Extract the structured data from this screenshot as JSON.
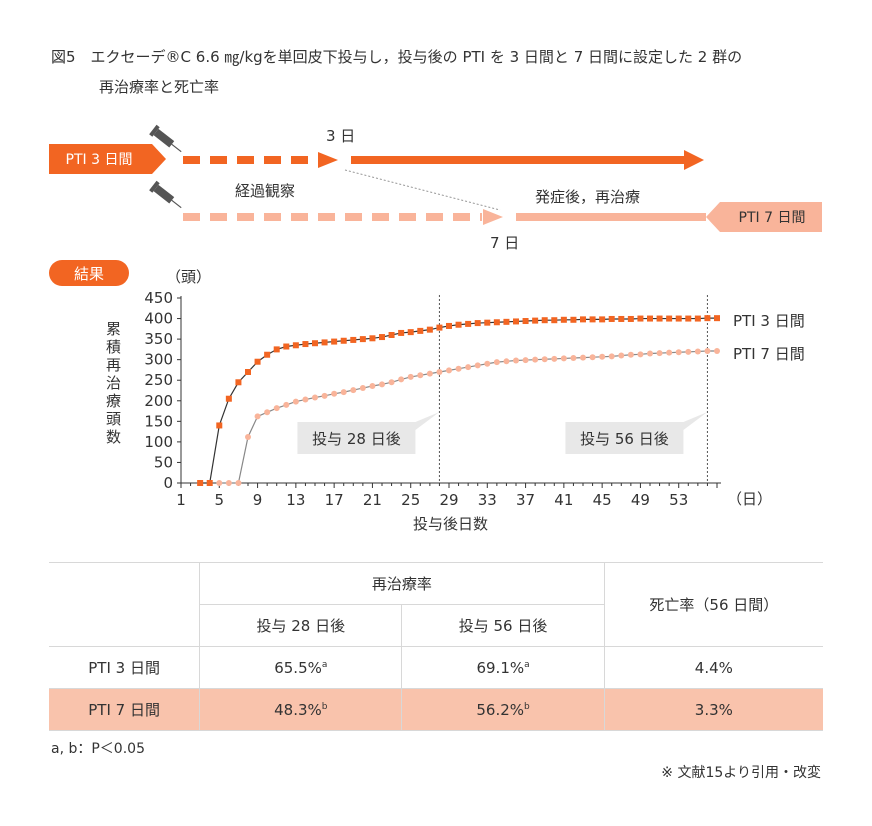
{
  "title": {
    "line1": "図5　エクセーデ®C 6.6 ㎎/kgを単回皮下投与し，投与後の PTI を 3 日間と 7 日間に設定した 2 群の",
    "line2": "再治療率と死亡率"
  },
  "protocol": {
    "group_a_label": "PTI 3 日間",
    "group_b_label": "PTI 7 日間",
    "day3_label": "3 日",
    "day7_label": "7 日",
    "observation_label": "経過観察",
    "retreat_label": "発症後，再治療",
    "color_a": "#f26522",
    "color_b": "#f9b49a"
  },
  "results_badge": "結果",
  "chart_data": {
    "type": "line",
    "ylabel": "累積再治療頭数",
    "yunit": "（頭）",
    "xlabel": "投与後日数",
    "xunit": "（日）",
    "xlim": [
      1,
      57
    ],
    "ylim": [
      0,
      450
    ],
    "xticks": [
      1,
      5,
      9,
      13,
      17,
      21,
      25,
      29,
      33,
      37,
      41,
      45,
      49,
      53
    ],
    "yticks": [
      0,
      50,
      100,
      150,
      200,
      250,
      300,
      350,
      400,
      450
    ],
    "annotations": [
      {
        "x": 28,
        "label": "投与 28 日後"
      },
      {
        "x": 56,
        "label": "投与 56 日後"
      }
    ],
    "series": [
      {
        "name": "PTI 3 日間",
        "color": "#f26522",
        "x": [
          3,
          4,
          5,
          6,
          7,
          8,
          9,
          10,
          11,
          12,
          13,
          14,
          15,
          16,
          17,
          18,
          19,
          20,
          21,
          22,
          23,
          24,
          25,
          26,
          27,
          28,
          29,
          30,
          31,
          32,
          33,
          34,
          35,
          36,
          37,
          38,
          39,
          40,
          41,
          42,
          43,
          44,
          45,
          46,
          47,
          48,
          49,
          50,
          51,
          52,
          53,
          54,
          55,
          56,
          57
        ],
        "y": [
          0,
          0,
          140,
          205,
          245,
          270,
          295,
          312,
          325,
          332,
          335,
          338,
          340,
          342,
          344,
          346,
          348,
          350,
          352,
          355,
          360,
          365,
          367,
          370,
          373,
          378,
          382,
          385,
          387,
          389,
          390,
          391,
          392,
          393,
          394,
          395,
          396,
          396,
          397,
          397,
          398,
          398,
          398,
          399,
          399,
          399,
          400,
          400,
          400,
          400,
          400,
          400,
          400,
          401,
          401
        ]
      },
      {
        "name": "PTI 7 日間",
        "color": "#f9b49a",
        "x": [
          5,
          6,
          7,
          8,
          9,
          10,
          11,
          12,
          13,
          14,
          15,
          16,
          17,
          18,
          19,
          20,
          21,
          22,
          23,
          24,
          25,
          26,
          27,
          28,
          29,
          30,
          31,
          32,
          33,
          34,
          35,
          36,
          37,
          38,
          39,
          40,
          41,
          42,
          43,
          44,
          45,
          46,
          47,
          48,
          49,
          50,
          51,
          52,
          53,
          54,
          55,
          56,
          57
        ],
        "y": [
          0,
          0,
          0,
          112,
          162,
          172,
          182,
          190,
          198,
          203,
          208,
          212,
          217,
          221,
          226,
          231,
          236,
          240,
          245,
          252,
          258,
          262,
          266,
          270,
          274,
          278,
          282,
          286,
          290,
          294,
          296,
          298,
          299,
          300,
          301,
          302,
          303,
          304,
          305,
          306,
          307,
          308,
          310,
          312,
          313,
          315,
          316,
          317,
          318,
          319,
          320,
          321,
          321
        ]
      }
    ]
  },
  "table": {
    "header_group": "再治療率",
    "col_28": "投与 28 日後",
    "col_56": "投与 56 日後",
    "col_mortality": "死亡率（56 日間）",
    "rows": [
      {
        "label": "PTI 3 日間",
        "r28": "65.5%",
        "r28_sup": "a",
        "r56": "69.1%",
        "r56_sup": "a",
        "mortality": "4.4%"
      },
      {
        "label": "PTI 7 日間",
        "r28": "48.3%",
        "r28_sup": "b",
        "r56": "56.2%",
        "r56_sup": "b",
        "mortality": "3.3%"
      }
    ]
  },
  "footnote": "a, b：P＜0.05",
  "source": "※ 文献15より引用・改変"
}
